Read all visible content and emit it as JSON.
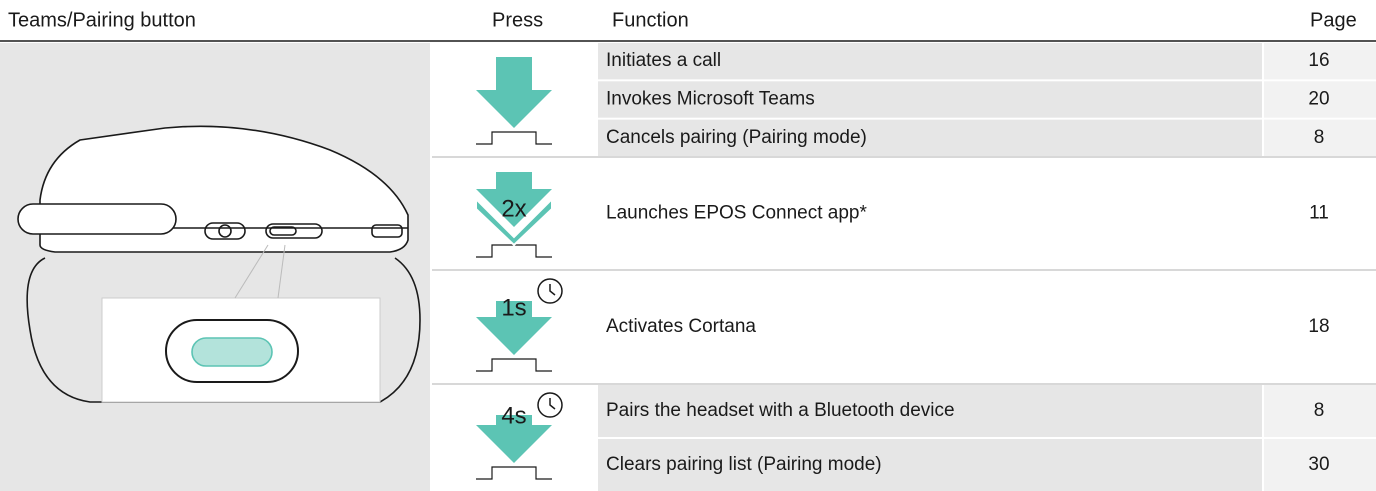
{
  "header": {
    "button": "Teams/Pairing button",
    "press": "Press",
    "function": "Function",
    "page": "Page"
  },
  "groups": [
    {
      "rows": [
        {
          "function": "Initiates a call",
          "page": 16
        },
        {
          "function": "Invokes Microsoft Teams",
          "page": 20
        },
        {
          "function": "Cancels pairing (Pairing mode)",
          "page": 8
        }
      ]
    },
    {
      "press_label": "2x",
      "rows": [
        {
          "function": "Launches EPOS Connect app*",
          "page": 11
        }
      ]
    },
    {
      "press_label": "1s",
      "rows": [
        {
          "function": "Activates Cortana",
          "page": 18
        }
      ]
    },
    {
      "press_label": "4s",
      "rows": [
        {
          "function": "Pairs the headset with a Bluetooth device",
          "page": 8
        },
        {
          "function": "Clears pairing list (Pairing mode)",
          "page": 30
        }
      ]
    }
  ]
}
